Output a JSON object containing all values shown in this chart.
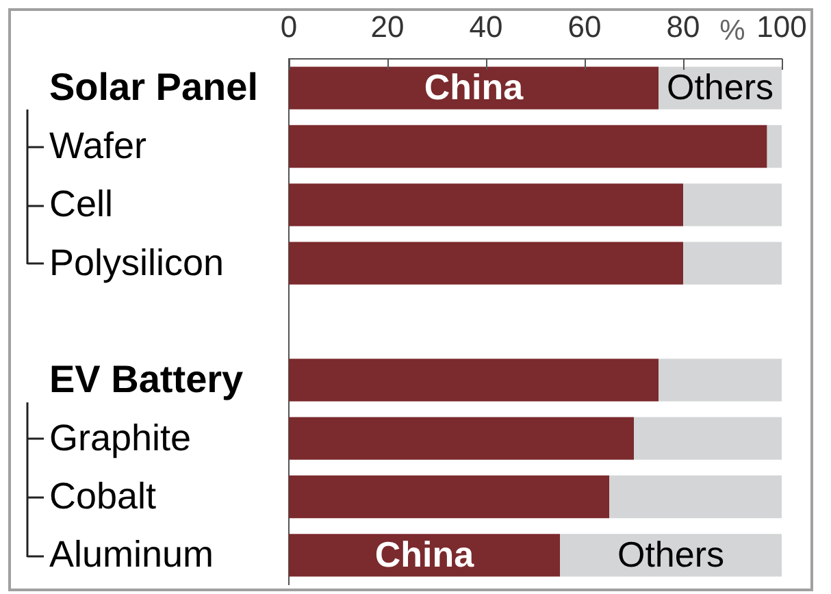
{
  "chart_data": {
    "type": "bar",
    "orientation": "horizontal",
    "stacked": true,
    "xlabel": "%",
    "categories": [
      "Solar Panel",
      "Wafer",
      "Cell",
      "Polysilicon",
      null,
      "EV Battery",
      "Graphite",
      "Cobalt",
      "Aluminum"
    ],
    "series": [
      {
        "name": "China",
        "color": "#7b2a2d",
        "values": [
          75,
          97,
          80,
          80,
          null,
          75,
          70,
          65,
          55
        ]
      },
      {
        "name": "Others",
        "color": "#d3d5d6",
        "values": [
          25,
          3,
          20,
          20,
          null,
          25,
          30,
          35,
          45
        ]
      }
    ],
    "xlim": [
      0,
      100
    ],
    "xticks": [
      0,
      20,
      40,
      60,
      80,
      100
    ]
  }
}
